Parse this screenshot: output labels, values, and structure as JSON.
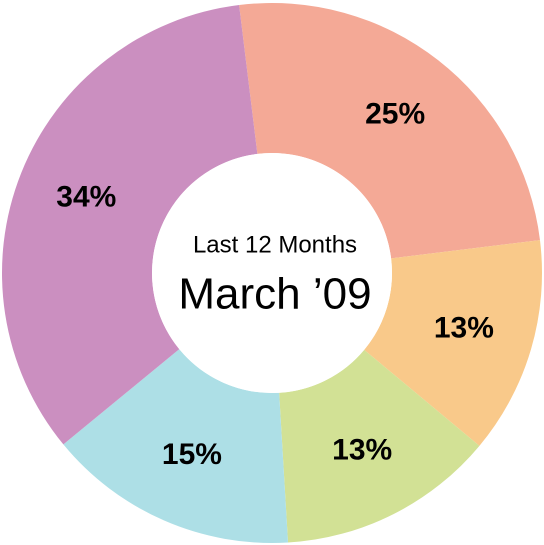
{
  "chart_data": {
    "type": "donut",
    "title": "Last 12 Months",
    "subtitle": "March ’09",
    "values": [
      25,
      13,
      13,
      15,
      34
    ],
    "value_labels": [
      "25%",
      "13%",
      "13%",
      "15%",
      "34%"
    ],
    "colors": [
      "#f4a996",
      "#f9c98a",
      "#d2e195",
      "#addfe6",
      "#cb8fc0"
    ]
  }
}
